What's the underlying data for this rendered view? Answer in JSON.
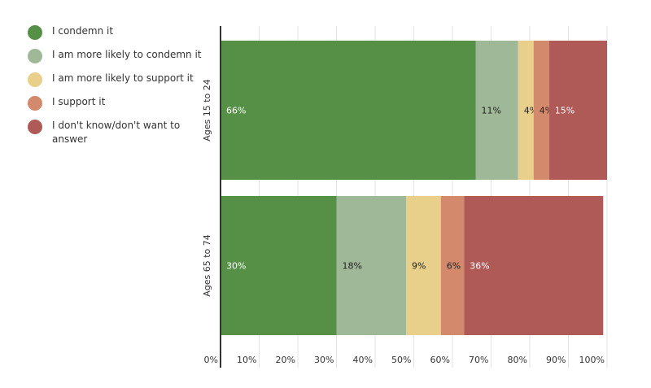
{
  "chart_data": {
    "type": "bar",
    "orientation": "horizontal",
    "stacked": true,
    "categories": [
      "Ages 15 to 24",
      "Ages 65 to 74"
    ],
    "series": [
      {
        "name": "I condemn it",
        "color": "#568f46",
        "values": [
          66,
          30
        ],
        "labels": [
          "66%",
          "30%"
        ]
      },
      {
        "name": "I am more likely to condemn it",
        "color": "#9fb898",
        "values": [
          11,
          18
        ],
        "labels": [
          "11%",
          "18%"
        ]
      },
      {
        "name": "I am more likely to support it",
        "color": "#e8cf8a",
        "values": [
          4,
          9
        ],
        "labels": [
          "4%",
          "9%"
        ]
      },
      {
        "name": "I support it",
        "color": "#d3896b",
        "values": [
          4,
          6
        ],
        "labels": [
          "4%",
          "6%"
        ]
      },
      {
        "name": "I don't know/don't want to answer",
        "color": "#b05a58",
        "values": [
          15,
          36
        ],
        "labels": [
          "15%",
          "36%"
        ]
      }
    ],
    "xlim": [
      0,
      100
    ],
    "x_ticks": [
      "0%",
      "10%",
      "20%",
      "30%",
      "40%",
      "50%",
      "60%",
      "70%",
      "80%",
      "90%",
      "100%"
    ],
    "grid": true,
    "legend_position": "left"
  }
}
